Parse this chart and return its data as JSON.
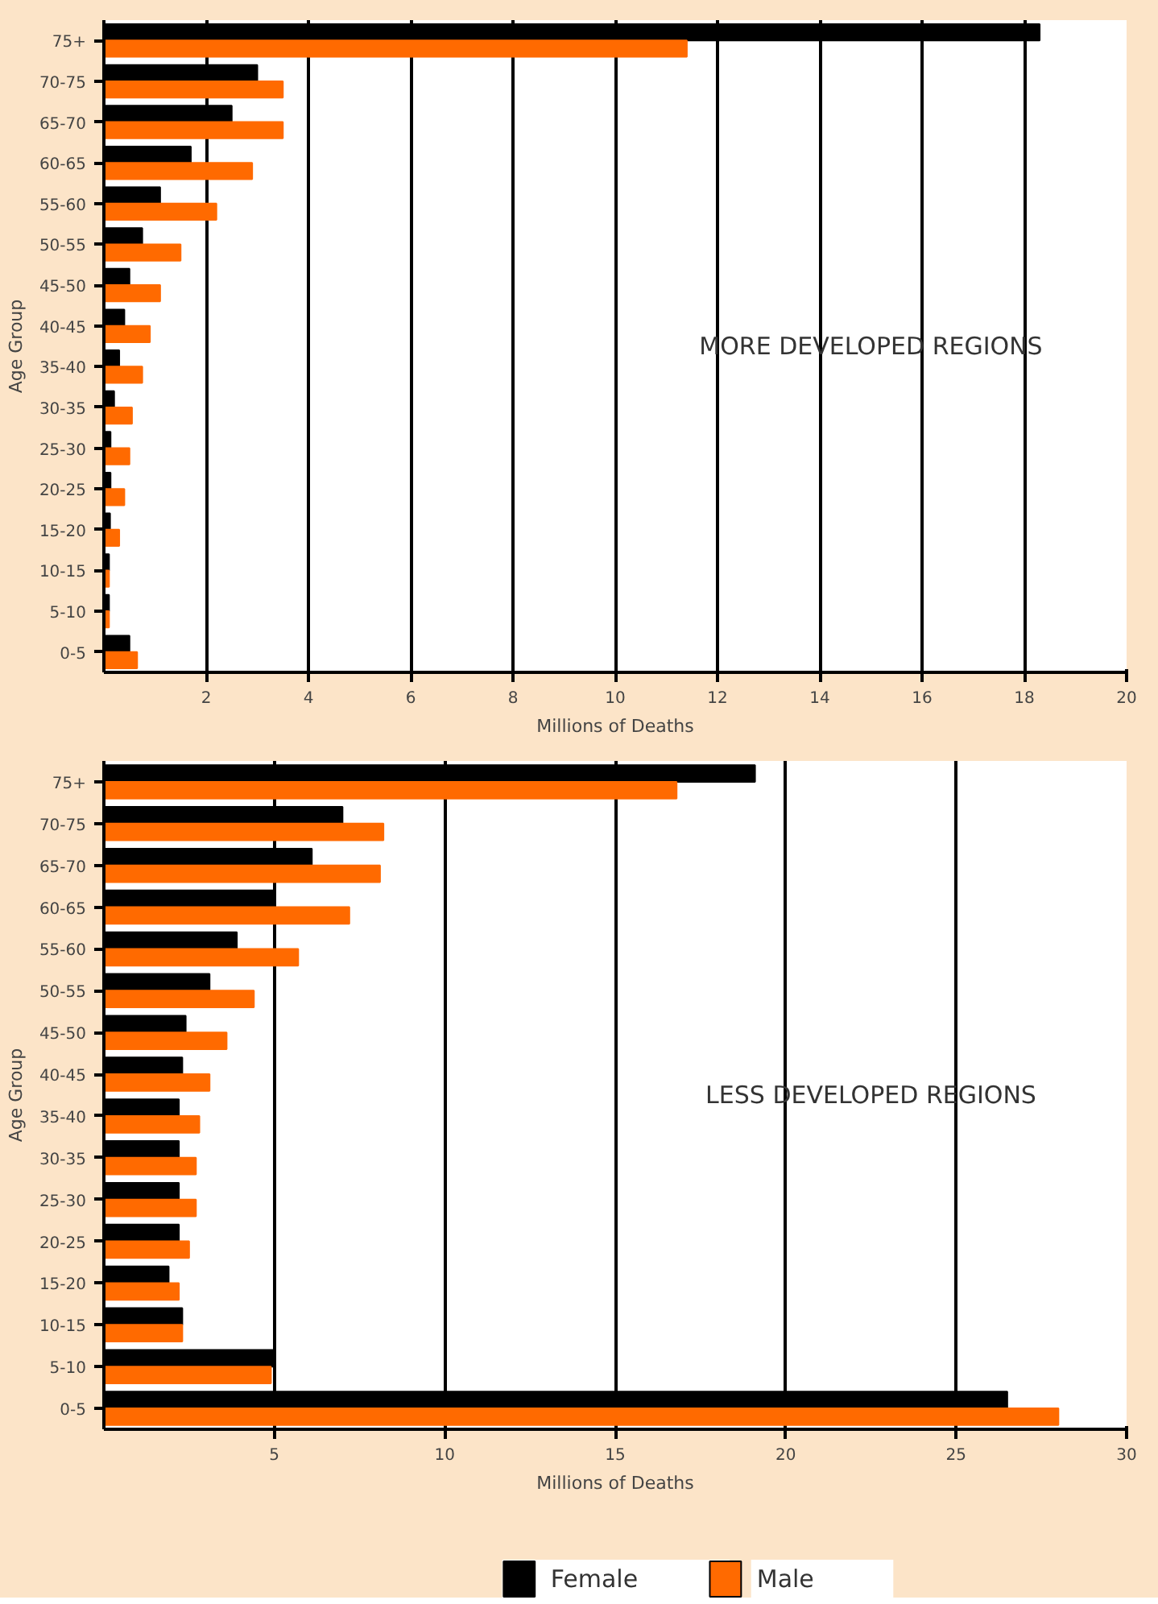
{
  "chart_data": [
    {
      "type": "bar",
      "orientation": "horizontal",
      "xlabel": "Millions of Deaths",
      "ylabel": "Age Group",
      "annotations": [
        "MORE DEVELOPED REGIONS"
      ],
      "categories": [
        "75+",
        "70-75",
        "65-70",
        "60-65",
        "55-60",
        "50-55",
        "45-50",
        "40-45",
        "35-40",
        "30-35",
        "25-30",
        "20-25",
        "15-20",
        "10-15",
        "5-10",
        "0-5"
      ],
      "series": [
        {
          "color": "#000000",
          "values": [
            18.3,
            3.0,
            2.5,
            1.7,
            1.1,
            0.75,
            0.5,
            0.4,
            0.3,
            0.2,
            0.13,
            0.13,
            0.12,
            0.1,
            0.1,
            0.5
          ]
        },
        {
          "color": "#ff6a00",
          "values": [
            11.4,
            3.5,
            3.5,
            2.9,
            2.2,
            1.5,
            1.1,
            0.9,
            0.75,
            0.55,
            0.5,
            0.4,
            0.3,
            0.1,
            0.1,
            0.65
          ]
        }
      ],
      "xlim": [
        0,
        20
      ],
      "xticks": [
        2,
        4,
        6,
        8,
        10,
        12,
        14,
        16,
        18,
        20
      ],
      "grid": "x"
    },
    {
      "type": "bar",
      "orientation": "horizontal",
      "xlabel": "Millions of Deaths",
      "ylabel": "Age Group",
      "annotations": [
        "LESS DEVELOPED REGIONS"
      ],
      "categories": [
        "75+",
        "70-75",
        "65-70",
        "60-65",
        "55-60",
        "50-55",
        "45-50",
        "40-45",
        "35-40",
        "30-35",
        "25-30",
        "20-25",
        "15-20",
        "10-15",
        "5-10",
        "0-5"
      ],
      "series": [
        {
          "name": "Female",
          "color": "#000000",
          "values": [
            19.1,
            7.0,
            6.1,
            5.0,
            3.9,
            3.1,
            2.4,
            2.3,
            2.2,
            2.2,
            2.2,
            2.2,
            1.9,
            2.3,
            5.0,
            26.5
          ]
        },
        {
          "name": "Male",
          "color": "#ff6a00",
          "values": [
            16.8,
            8.2,
            8.1,
            7.2,
            5.7,
            4.4,
            3.6,
            3.1,
            2.8,
            2.7,
            2.7,
            2.5,
            2.2,
            2.3,
            4.9,
            28.0
          ]
        }
      ],
      "xlim": [
        0,
        30
      ],
      "xticks": [
        5,
        10,
        15,
        20,
        25,
        30
      ],
      "grid": "x",
      "legend": "bottom"
    }
  ]
}
